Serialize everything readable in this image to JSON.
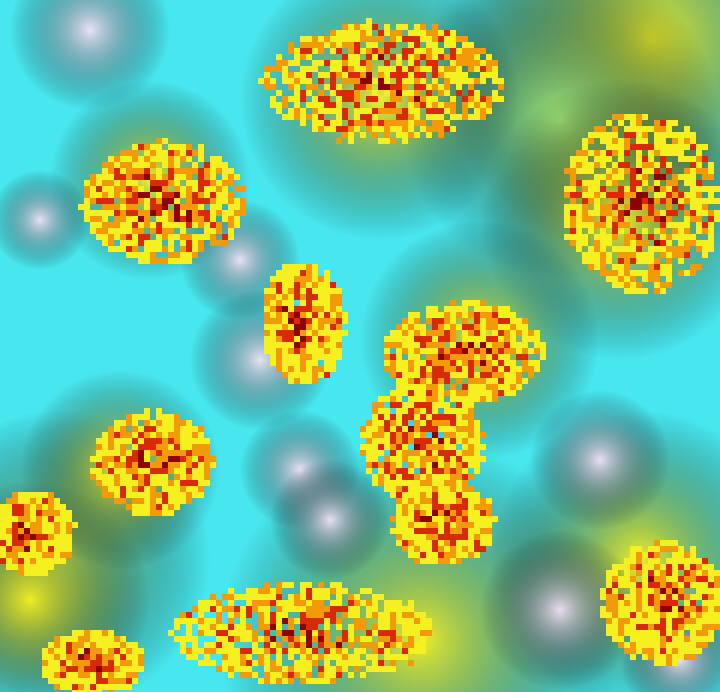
{
  "image": {
    "kind": "false-color satellite imagery",
    "palette": {
      "cyan": "#48e6ee",
      "pale_lavender": "#f2e2f6",
      "light_green": "#a8f07a",
      "yellow": "#f6f020",
      "orange": "#f29a08",
      "red": "#d82a04",
      "dark_red": "#8c0400"
    }
  }
}
